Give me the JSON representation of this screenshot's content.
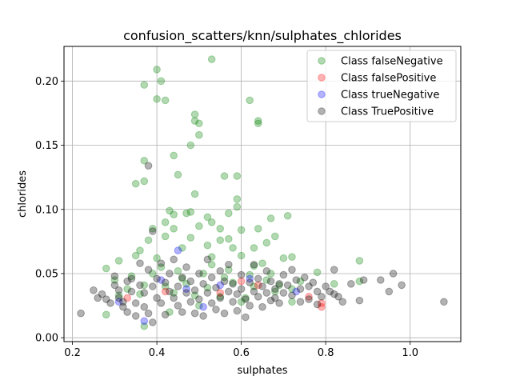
{
  "chart_data": {
    "type": "scatter",
    "title": "confusion_scatters/knn/sulphates_chlorides",
    "xlabel": "sulphates",
    "ylabel": "chlorides",
    "xlim": [
      0.18,
      1.12
    ],
    "ylim": [
      -0.003,
      0.227
    ],
    "xticks": [
      0.2,
      0.4,
      0.6,
      0.8,
      1.0
    ],
    "xtick_labels": [
      "0.2",
      "0.4",
      "0.6",
      "0.8",
      "1.0"
    ],
    "yticks": [
      0.0,
      0.05,
      0.1,
      0.15,
      0.2
    ],
    "ytick_labels": [
      "0.00",
      "0.05",
      "0.10",
      "0.15",
      "0.20"
    ],
    "grid": true,
    "legend_position": "top-right",
    "series": [
      {
        "name": "Class falseNegative",
        "color": "#008000",
        "points": [
          [
            0.53,
            0.217
          ],
          [
            0.4,
            0.209
          ],
          [
            0.41,
            0.2
          ],
          [
            0.37,
            0.197
          ],
          [
            0.4,
            0.186
          ],
          [
            0.42,
            0.185
          ],
          [
            0.62,
            0.185
          ],
          [
            0.49,
            0.174
          ],
          [
            0.49,
            0.169
          ],
          [
            0.5,
            0.167
          ],
          [
            0.64,
            0.169
          ],
          [
            0.64,
            0.167
          ],
          [
            0.5,
            0.158
          ],
          [
            0.48,
            0.15
          ],
          [
            0.44,
            0.142
          ],
          [
            0.37,
            0.138
          ],
          [
            0.45,
            0.127
          ],
          [
            0.35,
            0.12
          ],
          [
            0.37,
            0.122
          ],
          [
            0.56,
            0.126
          ],
          [
            0.49,
            0.112
          ],
          [
            0.59,
            0.126
          ],
          [
            0.59,
            0.108
          ],
          [
            0.59,
            0.102
          ],
          [
            0.43,
            0.099
          ],
          [
            0.44,
            0.096
          ],
          [
            0.47,
            0.097
          ],
          [
            0.48,
            0.098
          ],
          [
            0.52,
            0.094
          ],
          [
            0.53,
            0.09
          ],
          [
            0.57,
            0.097
          ],
          [
            0.67,
            0.093
          ],
          [
            0.71,
            0.095
          ],
          [
            0.42,
            0.09
          ],
          [
            0.5,
            0.087
          ],
          [
            0.39,
            0.085
          ],
          [
            0.44,
            0.085
          ],
          [
            0.64,
            0.085
          ],
          [
            0.6,
            0.084
          ],
          [
            0.55,
            0.085
          ],
          [
            0.38,
            0.076
          ],
          [
            0.42,
            0.079
          ],
          [
            0.48,
            0.078
          ],
          [
            0.55,
            0.076
          ],
          [
            0.57,
            0.077
          ],
          [
            0.68,
            0.079
          ],
          [
            0.66,
            0.074
          ],
          [
            0.36,
            0.068
          ],
          [
            0.46,
            0.07
          ],
          [
            0.52,
            0.072
          ],
          [
            0.58,
            0.07
          ],
          [
            0.63,
            0.07
          ],
          [
            0.7,
            0.062
          ],
          [
            0.72,
            0.063
          ],
          [
            0.28,
            0.054
          ],
          [
            0.31,
            0.06
          ],
          [
            0.35,
            0.064
          ],
          [
            0.4,
            0.062
          ],
          [
            0.53,
            0.063
          ],
          [
            0.6,
            0.064
          ],
          [
            0.65,
            0.058
          ],
          [
            0.78,
            0.051
          ],
          [
            0.88,
            0.06
          ],
          [
            0.3,
            0.045
          ],
          [
            0.34,
            0.048
          ],
          [
            0.41,
            0.055
          ],
          [
            0.45,
            0.052
          ],
          [
            0.51,
            0.05
          ],
          [
            0.56,
            0.047
          ],
          [
            0.62,
            0.049
          ],
          [
            0.66,
            0.045
          ],
          [
            0.69,
            0.041
          ],
          [
            0.74,
            0.044
          ],
          [
            0.33,
            0.038
          ],
          [
            0.37,
            0.041
          ],
          [
            0.42,
            0.04
          ],
          [
            0.47,
            0.042
          ],
          [
            0.52,
            0.039
          ],
          [
            0.58,
            0.043
          ],
          [
            0.63,
            0.04
          ],
          [
            0.68,
            0.036
          ],
          [
            0.72,
            0.038
          ],
          [
            0.82,
            0.042
          ],
          [
            0.88,
            0.044
          ],
          [
            0.31,
            0.033
          ],
          [
            0.36,
            0.034
          ],
          [
            0.44,
            0.035
          ],
          [
            0.49,
            0.033
          ],
          [
            0.55,
            0.032
          ],
          [
            0.61,
            0.031
          ],
          [
            0.72,
            0.028
          ],
          [
            0.28,
            0.018
          ],
          [
            0.37,
            0.009
          ],
          [
            0.43,
            0.02
          ],
          [
            0.5,
            0.025
          ],
          [
            0.6,
            0.028
          ],
          [
            0.39,
            0.05
          ],
          [
            0.46,
            0.046
          ],
          [
            0.53,
            0.057
          ],
          [
            0.57,
            0.053
          ],
          [
            0.63,
            0.056
          ],
          [
            0.67,
            0.05
          ]
        ]
      },
      {
        "name": "Class falsePositive",
        "color": "#ff0000",
        "points": [
          [
            0.79,
            0.024
          ],
          [
            0.79,
            0.027
          ],
          [
            0.76,
            0.032
          ],
          [
            0.55,
            0.035
          ],
          [
            0.6,
            0.044
          ],
          [
            0.64,
            0.041
          ],
          [
            0.33,
            0.031
          ],
          [
            0.42,
            0.036
          ]
        ]
      },
      {
        "name": "Class trueNegative",
        "color": "#0000ff",
        "points": [
          [
            0.73,
            0.036
          ],
          [
            0.51,
            0.024
          ],
          [
            0.37,
            0.013
          ],
          [
            0.31,
            0.028
          ],
          [
            0.45,
            0.068
          ],
          [
            0.62,
            0.046
          ],
          [
            0.41,
            0.045
          ],
          [
            0.47,
            0.038
          ],
          [
            0.55,
            0.041
          ]
        ]
      },
      {
        "name": "Class TruePositive",
        "color": "#000000",
        "points": [
          [
            0.38,
            0.134
          ],
          [
            0.39,
            0.083
          ],
          [
            0.22,
            0.019
          ],
          [
            0.25,
            0.037
          ],
          [
            0.26,
            0.031
          ],
          [
            0.27,
            0.034
          ],
          [
            0.28,
            0.03
          ],
          [
            0.29,
            0.027
          ],
          [
            0.3,
            0.048
          ],
          [
            0.3,
            0.041
          ],
          [
            0.31,
            0.037
          ],
          [
            0.31,
            0.031
          ],
          [
            0.32,
            0.028
          ],
          [
            0.32,
            0.024
          ],
          [
            0.33,
            0.044
          ],
          [
            0.33,
            0.02
          ],
          [
            0.34,
            0.046
          ],
          [
            0.34,
            0.036
          ],
          [
            0.35,
            0.027
          ],
          [
            0.35,
            0.017
          ],
          [
            0.36,
            0.058
          ],
          [
            0.36,
            0.041
          ],
          [
            0.37,
            0.035
          ],
          [
            0.37,
            0.024
          ],
          [
            0.38,
            0.053
          ],
          [
            0.38,
            0.019
          ],
          [
            0.39,
            0.04
          ],
          [
            0.39,
            0.012
          ],
          [
            0.4,
            0.046
          ],
          [
            0.4,
            0.031
          ],
          [
            0.41,
            0.058
          ],
          [
            0.41,
            0.027
          ],
          [
            0.42,
            0.043
          ],
          [
            0.42,
            0.018
          ],
          [
            0.43,
            0.036
          ],
          [
            0.43,
            0.05
          ],
          [
            0.44,
            0.031
          ],
          [
            0.44,
            0.061
          ],
          [
            0.45,
            0.04
          ],
          [
            0.45,
            0.025
          ],
          [
            0.46,
            0.047
          ],
          [
            0.46,
            0.02
          ],
          [
            0.47,
            0.035
          ],
          [
            0.47,
            0.055
          ],
          [
            0.48,
            0.028
          ],
          [
            0.48,
            0.044
          ],
          [
            0.49,
            0.037
          ],
          [
            0.49,
            0.019
          ],
          [
            0.5,
            0.05
          ],
          [
            0.5,
            0.03
          ],
          [
            0.51,
            0.042
          ],
          [
            0.51,
            0.017
          ],
          [
            0.52,
            0.035
          ],
          [
            0.52,
            0.061
          ],
          [
            0.53,
            0.027
          ],
          [
            0.53,
            0.047
          ],
          [
            0.54,
            0.039
          ],
          [
            0.54,
            0.022
          ],
          [
            0.55,
            0.052
          ],
          [
            0.55,
            0.031
          ],
          [
            0.56,
            0.044
          ],
          [
            0.56,
            0.019
          ],
          [
            0.57,
            0.036
          ],
          [
            0.57,
            0.057
          ],
          [
            0.58,
            0.028
          ],
          [
            0.58,
            0.042
          ],
          [
            0.59,
            0.034
          ],
          [
            0.59,
            0.021
          ],
          [
            0.6,
            0.049
          ],
          [
            0.6,
            0.038
          ],
          [
            0.61,
            0.03
          ],
          [
            0.61,
            0.016
          ],
          [
            0.62,
            0.043
          ],
          [
            0.62,
            0.025
          ],
          [
            0.63,
            0.036
          ],
          [
            0.63,
            0.057
          ],
          [
            0.64,
            0.032
          ],
          [
            0.64,
            0.046
          ],
          [
            0.65,
            0.04
          ],
          [
            0.65,
            0.024
          ],
          [
            0.66,
            0.035
          ],
          [
            0.66,
            0.052
          ],
          [
            0.67,
            0.029
          ],
          [
            0.67,
            0.044
          ],
          [
            0.68,
            0.038
          ],
          [
            0.68,
            0.031
          ],
          [
            0.69,
            0.042
          ],
          [
            0.69,
            0.027
          ],
          [
            0.7,
            0.035
          ],
          [
            0.7,
            0.049
          ],
          [
            0.71,
            0.041
          ],
          [
            0.72,
            0.033
          ],
          [
            0.72,
            0.053
          ],
          [
            0.73,
            0.045
          ],
          [
            0.74,
            0.038
          ],
          [
            0.74,
            0.028
          ],
          [
            0.75,
            0.047
          ],
          [
            0.76,
            0.04
          ],
          [
            0.76,
            0.03
          ],
          [
            0.77,
            0.043
          ],
          [
            0.78,
            0.036
          ],
          [
            0.78,
            0.026
          ],
          [
            0.79,
            0.032
          ],
          [
            0.8,
            0.04
          ],
          [
            0.81,
            0.036
          ],
          [
            0.82,
            0.053
          ],
          [
            0.82,
            0.034
          ],
          [
            0.83,
            0.032
          ],
          [
            0.84,
            0.028
          ],
          [
            0.86,
            0.042
          ],
          [
            0.88,
            0.029
          ],
          [
            0.89,
            0.045
          ],
          [
            0.93,
            0.045
          ],
          [
            0.95,
            0.036
          ],
          [
            0.96,
            0.05
          ],
          [
            0.98,
            0.041
          ],
          [
            1.08,
            0.028
          ]
        ]
      }
    ]
  }
}
